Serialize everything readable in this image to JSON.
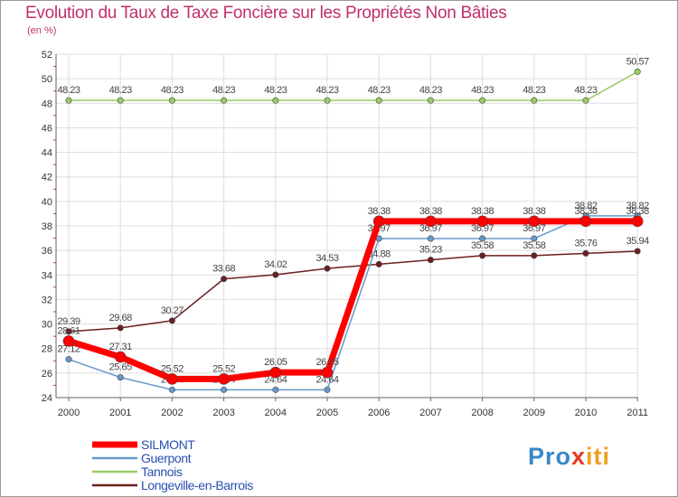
{
  "chart_data": {
    "type": "line",
    "title": "Evolution du Taux de Taxe Foncière sur les Propriétés Non Bâties",
    "ylabel": "(en %)",
    "xlabel": "",
    "categories": [
      "2000",
      "2001",
      "2002",
      "2003",
      "2004",
      "2005",
      "2006",
      "2007",
      "2008",
      "2009",
      "2010",
      "2011"
    ],
    "ylim": [
      24,
      52
    ],
    "yticks": [
      "24",
      "26",
      "28",
      "30",
      "32",
      "34",
      "36",
      "38",
      "40",
      "42",
      "44",
      "46",
      "48",
      "50",
      "52"
    ],
    "grid": true,
    "legend_position": "bottom-left",
    "series": [
      {
        "name": "Tannois",
        "color": "#99cc66",
        "values": [
          48.23,
          48.23,
          48.23,
          48.23,
          48.23,
          48.23,
          48.23,
          48.23,
          48.23,
          48.23,
          48.23,
          50.57
        ],
        "labels": [
          "48.23",
          "48.23",
          "48.23",
          "48.23",
          "48.23",
          "48.23",
          "48.23",
          "48.23",
          "48.23",
          "48.23",
          "48.23",
          "50.57"
        ]
      },
      {
        "name": "Longeville-en-Barrois",
        "color": "#6b1f1f",
        "values": [
          29.39,
          29.68,
          30.27,
          33.68,
          34.02,
          34.53,
          34.88,
          35.23,
          35.58,
          35.58,
          35.76,
          35.94
        ],
        "labels": [
          "29.39",
          "29.68",
          "30.27",
          "33.68",
          "34.02",
          "34.53",
          "34.88",
          "35.23",
          "35.58",
          "35.58",
          "35.76",
          "35.94"
        ]
      },
      {
        "name": "Guerpont",
        "color": "#6699cc",
        "values": [
          27.12,
          25.65,
          24.64,
          24.64,
          24.64,
          24.64,
          36.97,
          36.97,
          36.97,
          36.97,
          38.82,
          38.82
        ],
        "labels": [
          "27.12",
          "25.65",
          "24.64",
          "24.64",
          "24.64",
          "24.64",
          "36.97",
          "36.97",
          "36.97",
          "36.97",
          "38.82",
          "38.82"
        ]
      },
      {
        "name": "SILMONT",
        "color": "#ff0000",
        "values": [
          28.61,
          27.31,
          25.52,
          25.52,
          26.05,
          26.05,
          38.38,
          38.38,
          38.38,
          38.38,
          38.38,
          38.38
        ],
        "labels": [
          "28.61",
          "27.31",
          "25.52",
          "25.52",
          "26.05",
          "26.05",
          "38.38",
          "38.38",
          "38.38",
          "38.38",
          "38.38",
          "38.38"
        ]
      }
    ],
    "legend": [
      "SILMONT",
      "Guerpont",
      "Tannois",
      "Longeville-en-Barrois"
    ]
  },
  "brand": {
    "prefix": "Pro",
    "x": "x",
    "suffix": "iti"
  }
}
